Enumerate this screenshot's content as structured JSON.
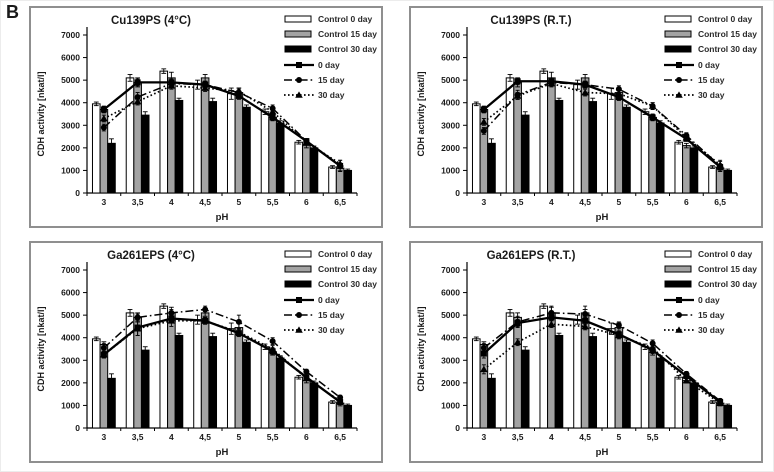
{
  "figure_label": "B",
  "colors": {
    "bar_white": "#ffffff",
    "bar_gray": "#a3a3a3",
    "bar_black": "#000000",
    "line_black": "#000000",
    "panel_border": "#8f8f8f",
    "text": "#1a1a1a"
  },
  "axis": {
    "ylabel": "CDH activity [nkat/l]",
    "xlabel": "pH",
    "ymin": 0,
    "ymax": 7000,
    "yticks": [
      "0",
      "1000",
      "2000",
      "3000",
      "4000",
      "5000",
      "6000",
      "7000"
    ],
    "categories": [
      "3",
      "3,5",
      "4",
      "4,5",
      "5",
      "5,5",
      "6",
      "6,5"
    ]
  },
  "legend": [
    {
      "label": "Control 0 day",
      "type": "bar",
      "fill": "#ffffff"
    },
    {
      "label": "Control 15 day",
      "type": "bar",
      "fill": "#a3a3a3"
    },
    {
      "label": "Control 30 day",
      "type": "bar",
      "fill": "#000000"
    },
    {
      "label": "0 day",
      "type": "line",
      "style": "solid",
      "marker": "square"
    },
    {
      "label": "15 day",
      "type": "line",
      "style": "dashdot",
      "marker": "circle"
    },
    {
      "label": "30 day",
      "type": "line",
      "style": "dotted",
      "marker": "triangle"
    }
  ],
  "chart_data": [
    {
      "type": "bar+line",
      "title": "Cu139PS (4°C)",
      "xlabel": "pH",
      "ylabel": "CDH activity [nkat/l]",
      "ylim": [
        0,
        7000
      ],
      "categories": [
        "3",
        "3,5",
        "4",
        "4,5",
        "5",
        "5,5",
        "6",
        "6,5"
      ],
      "bar_series": [
        {
          "name": "Control 0 day",
          "fill": "#ffffff",
          "values": [
            3950,
            5100,
            5400,
            4800,
            4400,
            3600,
            2250,
            1150
          ],
          "err": [
            80,
            150,
            100,
            200,
            250,
            120,
            80,
            60
          ]
        },
        {
          "name": "Control 15 day",
          "fill": "#a3a3a3",
          "values": [
            3700,
            4900,
            5100,
            5100,
            4450,
            3350,
            2100,
            1100
          ],
          "err": [
            120,
            200,
            250,
            150,
            200,
            120,
            100,
            120
          ]
        },
        {
          "name": "Control 30 day",
          "fill": "#000000",
          "values": [
            2200,
            3450,
            4100,
            4050,
            3800,
            3100,
            2000,
            1000
          ],
          "err": [
            200,
            150,
            100,
            150,
            100,
            100,
            80,
            60
          ]
        }
      ],
      "line_series": [
        {
          "name": "0 day",
          "style": "solid",
          "marker": "square",
          "values": [
            3700,
            4900,
            4900,
            4800,
            4300,
            3350,
            2300,
            1200
          ],
          "err": [
            150,
            150,
            150,
            150,
            150,
            150,
            100,
            100
          ]
        },
        {
          "name": "15 day",
          "style": "dashdot",
          "marker": "circle",
          "values": [
            2900,
            4250,
            4850,
            4800,
            4450,
            3750,
            2300,
            1200
          ],
          "err": [
            150,
            200,
            150,
            150,
            150,
            150,
            100,
            250
          ]
        },
        {
          "name": "30 day",
          "style": "dotted",
          "marker": "triangle",
          "values": [
            3300,
            4050,
            4750,
            4650,
            4500,
            3600,
            2250,
            1300
          ],
          "err": [
            150,
            150,
            150,
            150,
            150,
            150,
            100,
            150
          ]
        }
      ]
    },
    {
      "type": "bar+line",
      "title": "Cu139PS (R.T.)",
      "xlabel": "pH",
      "ylabel": "CDH activity [nkat/l]",
      "ylim": [
        0,
        7000
      ],
      "categories": [
        "3",
        "3,5",
        "4",
        "4,5",
        "5",
        "5,5",
        "6",
        "6,5"
      ],
      "bar_series": [
        {
          "name": "Control 0 day",
          "fill": "#ffffff",
          "values": [
            3950,
            5100,
            5400,
            4800,
            4400,
            3600,
            2250,
            1150
          ],
          "err": [
            80,
            150,
            100,
            200,
            250,
            120,
            80,
            60
          ]
        },
        {
          "name": "Control 15 day",
          "fill": "#a3a3a3",
          "values": [
            3700,
            4900,
            5100,
            5100,
            4450,
            3350,
            2100,
            1100
          ],
          "err": [
            120,
            200,
            250,
            150,
            200,
            120,
            100,
            120
          ]
        },
        {
          "name": "Control 30 day",
          "fill": "#000000",
          "values": [
            2200,
            3450,
            4100,
            4050,
            3800,
            3100,
            2000,
            1000
          ],
          "err": [
            200,
            150,
            100,
            150,
            100,
            100,
            80,
            60
          ]
        }
      ],
      "line_series": [
        {
          "name": "0 day",
          "style": "solid",
          "marker": "square",
          "values": [
            3700,
            4950,
            4950,
            4800,
            4250,
            3350,
            2400,
            1150
          ],
          "err": [
            150,
            150,
            150,
            150,
            150,
            150,
            100,
            100
          ]
        },
        {
          "name": "15 day",
          "style": "dashdot",
          "marker": "circle",
          "values": [
            2750,
            4350,
            4900,
            4800,
            4600,
            3850,
            2550,
            1200
          ],
          "err": [
            150,
            200,
            150,
            150,
            150,
            150,
            120,
            250
          ]
        },
        {
          "name": "30 day",
          "style": "dotted",
          "marker": "triangle",
          "values": [
            3150,
            4300,
            4850,
            4450,
            4400,
            3850,
            2450,
            1250
          ],
          "err": [
            150,
            150,
            150,
            150,
            150,
            150,
            100,
            150
          ]
        }
      ]
    },
    {
      "type": "bar+line",
      "title": "Ga261EPS (4°C)",
      "xlabel": "pH",
      "ylabel": "CDH activity [nkat/l]",
      "ylim": [
        0,
        7000
      ],
      "categories": [
        "3",
        "3,5",
        "4",
        "4,5",
        "5",
        "5,5",
        "6",
        "6,5"
      ],
      "bar_series": [
        {
          "name": "Control 0 day",
          "fill": "#ffffff",
          "values": [
            3950,
            5100,
            5400,
            4800,
            4400,
            3600,
            2250,
            1150
          ],
          "err": [
            80,
            150,
            100,
            200,
            250,
            120,
            80,
            60
          ]
        },
        {
          "name": "Control 15 day",
          "fill": "#a3a3a3",
          "values": [
            3700,
            4900,
            5100,
            5100,
            4450,
            3350,
            2100,
            1100
          ],
          "err": [
            120,
            200,
            250,
            150,
            200,
            120,
            100,
            120
          ]
        },
        {
          "name": "Control 30 day",
          "fill": "#000000",
          "values": [
            2200,
            3450,
            4100,
            4050,
            3800,
            3100,
            2000,
            1000
          ],
          "err": [
            200,
            150,
            100,
            150,
            100,
            100,
            80,
            60
          ]
        }
      ],
      "line_series": [
        {
          "name": "0 day",
          "style": "solid",
          "marker": "square",
          "values": [
            3250,
            4450,
            4850,
            4750,
            4200,
            3400,
            2250,
            1150
          ],
          "err": [
            150,
            350,
            150,
            150,
            150,
            150,
            100,
            100
          ]
        },
        {
          "name": "15 day",
          "style": "dashdot",
          "marker": "circle",
          "values": [
            3550,
            4900,
            5100,
            5250,
            4700,
            3850,
            2500,
            1350
          ],
          "err": [
            200,
            150,
            150,
            150,
            300,
            150,
            100,
            100
          ]
        },
        {
          "name": "30 day",
          "style": "dotted",
          "marker": "triangle",
          "values": [
            3250,
            4400,
            4750,
            4750,
            4250,
            3500,
            2200,
            1200
          ],
          "err": [
            150,
            300,
            250,
            150,
            150,
            150,
            100,
            100
          ]
        }
      ]
    },
    {
      "type": "bar+line",
      "title": "Ga261EPS (R.T.)",
      "xlabel": "pH",
      "ylabel": "CDH activity [nkat/l]",
      "ylim": [
        0,
        7000
      ],
      "categories": [
        "3",
        "3,5",
        "4",
        "4,5",
        "5",
        "5,5",
        "6",
        "6,5"
      ],
      "bar_series": [
        {
          "name": "Control 0 day",
          "fill": "#ffffff",
          "values": [
            3950,
            5100,
            5400,
            4800,
            4400,
            3600,
            2250,
            1150
          ],
          "err": [
            80,
            150,
            100,
            200,
            250,
            120,
            80,
            60
          ]
        },
        {
          "name": "Control 15 day",
          "fill": "#a3a3a3",
          "values": [
            3700,
            4900,
            5100,
            5100,
            4450,
            3350,
            2100,
            1100
          ],
          "err": [
            120,
            200,
            250,
            150,
            200,
            120,
            100,
            120
          ]
        },
        {
          "name": "Control 30 day",
          "fill": "#000000",
          "values": [
            2200,
            3450,
            4100,
            4050,
            3800,
            3100,
            2000,
            1000
          ],
          "err": [
            200,
            150,
            100,
            150,
            100,
            100,
            80,
            60
          ]
        }
      ],
      "line_series": [
        {
          "name": "0 day",
          "style": "solid",
          "marker": "square",
          "values": [
            3300,
            4650,
            4900,
            4750,
            4150,
            3450,
            2300,
            1150
          ],
          "err": [
            200,
            150,
            150,
            150,
            150,
            150,
            100,
            100
          ]
        },
        {
          "name": "15 day",
          "style": "dashdot",
          "marker": "circle",
          "values": [
            3550,
            4700,
            5100,
            5050,
            4550,
            3750,
            2400,
            1200
          ],
          "err": [
            200,
            250,
            300,
            350,
            150,
            150,
            100,
            100
          ]
        },
        {
          "name": "30 day",
          "style": "dotted",
          "marker": "triangle",
          "values": [
            2600,
            3800,
            4600,
            4500,
            4100,
            3550,
            2100,
            1100
          ],
          "err": [
            200,
            150,
            150,
            150,
            150,
            150,
            100,
            100
          ]
        }
      ]
    }
  ]
}
